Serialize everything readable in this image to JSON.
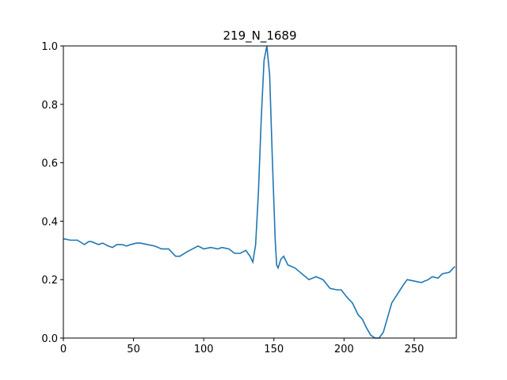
{
  "chart_data": {
    "type": "line",
    "title": "219_N_1689",
    "series": [
      {
        "color": "#1f77b4",
        "x": [
          0,
          5,
          10,
          15,
          18,
          20,
          25,
          28,
          32,
          35,
          38,
          42,
          45,
          48,
          52,
          55,
          60,
          65,
          70,
          75,
          80,
          83,
          88,
          92,
          96,
          100,
          105,
          110,
          113,
          118,
          122,
          126,
          130,
          133,
          135,
          137,
          139,
          141,
          143,
          145,
          147,
          149,
          151,
          152,
          153,
          155,
          157,
          160,
          165,
          170,
          175,
          180,
          185,
          190,
          195,
          198,
          202,
          206,
          210,
          213,
          216,
          219,
          222,
          225,
          228,
          231,
          234,
          238,
          242,
          245,
          250,
          255,
          260,
          263,
          267,
          270,
          275,
          279
        ],
        "values": [
          0.34,
          0.335,
          0.335,
          0.32,
          0.33,
          0.33,
          0.32,
          0.325,
          0.315,
          0.31,
          0.32,
          0.32,
          0.315,
          0.32,
          0.325,
          0.325,
          0.32,
          0.315,
          0.305,
          0.305,
          0.28,
          0.28,
          0.295,
          0.305,
          0.315,
          0.305,
          0.31,
          0.305,
          0.31,
          0.305,
          0.29,
          0.29,
          0.3,
          0.28,
          0.26,
          0.32,
          0.5,
          0.75,
          0.95,
          1.0,
          0.9,
          0.6,
          0.33,
          0.25,
          0.24,
          0.27,
          0.28,
          0.25,
          0.24,
          0.22,
          0.2,
          0.21,
          0.2,
          0.17,
          0.165,
          0.165,
          0.14,
          0.12,
          0.08,
          0.065,
          0.035,
          0.01,
          0.0,
          0.0,
          0.02,
          0.07,
          0.12,
          0.15,
          0.18,
          0.2,
          0.195,
          0.19,
          0.2,
          0.21,
          0.205,
          0.22,
          0.225,
          0.245
        ]
      }
    ],
    "xlim": [
      0,
      280
    ],
    "ylim": [
      0,
      1
    ],
    "xticks": [
      0,
      50,
      100,
      150,
      200,
      250
    ],
    "yticks": [
      {
        "value": 0,
        "label": "0.0"
      },
      0.2,
      0.4,
      0.6,
      0.8,
      {
        "value": 1,
        "label": "1.0"
      }
    ]
  }
}
